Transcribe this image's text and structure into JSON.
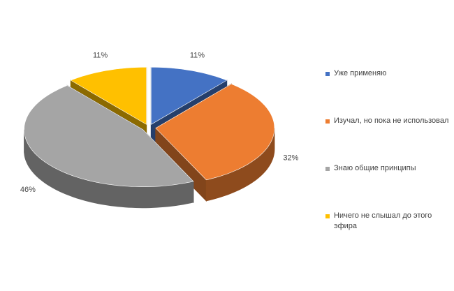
{
  "chart_data": {
    "type": "pie3d",
    "categories": [
      "Уже применяю",
      "Изучал, но пока не использовал",
      "Знаю общие принципы",
      "Ничего не слышал до этого эфира"
    ],
    "values": [
      11,
      32,
      46,
      11
    ],
    "value_labels": [
      "11%",
      "32%",
      "46%",
      "11%"
    ],
    "colors": [
      "#4472c4",
      "#ed7d31",
      "#a5a5a5",
      "#ffc000"
    ],
    "legend": "right"
  }
}
